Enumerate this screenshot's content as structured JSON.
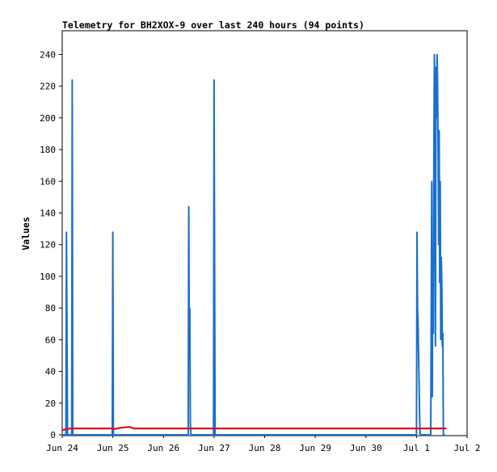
{
  "chart_data": {
    "type": "line",
    "title": "Telemetry for BH2XOX-9 over last 240 hours (94 points)",
    "xlabel": "",
    "ylabel": "Values",
    "xlim": [
      "Jun 24 00:00",
      "Jul 2 00:00"
    ],
    "ylim": [
      0,
      255
    ],
    "grid": false,
    "legend": "none",
    "x_ticks": [
      "Jun 24",
      "Jun 25",
      "Jun 26",
      "Jun 27",
      "Jun 28",
      "Jun 29",
      "Jun 30",
      "Jul 1",
      "Jul 2"
    ],
    "y_ticks": [
      "0",
      "20",
      "40",
      "60",
      "80",
      "100",
      "120",
      "140",
      "160",
      "180",
      "200",
      "220",
      "240"
    ],
    "colors": {
      "series_a": "#1a6fce",
      "series_b": "#e01010",
      "axis": "#000000",
      "background": "#ffffff"
    },
    "series": [
      {
        "color": "#1a6fce",
        "points": [
          [
            "Jun 24 00:00",
            0
          ],
          [
            "Jun 24 01:45",
            0
          ],
          [
            "Jun 24 02:00",
            128
          ],
          [
            "Jun 24 02:15",
            64
          ],
          [
            "Jun 24 02:30",
            0
          ],
          [
            "Jun 24 04:30",
            0
          ],
          [
            "Jun 24 04:45",
            224
          ],
          [
            "Jun 24 05:00",
            0
          ],
          [
            "Jun 24 23:45",
            0
          ],
          [
            "Jun 25 00:00",
            128
          ],
          [
            "Jun 25 00:15",
            0
          ],
          [
            "Jun 26 11:45",
            0
          ],
          [
            "Jun 26 12:00",
            144
          ],
          [
            "Jun 26 12:15",
            64
          ],
          [
            "Jun 26 12:30",
            80
          ],
          [
            "Jun 26 12:45",
            8
          ],
          [
            "Jun 26 13:00",
            0
          ],
          [
            "Jun 26 23:45",
            0
          ],
          [
            "Jun 27 00:00",
            224
          ],
          [
            "Jun 27 00:15",
            112
          ],
          [
            "Jun 27 00:30",
            0
          ],
          [
            "Jul 1 00:00",
            0
          ],
          [
            "Jul 1 00:15",
            128
          ],
          [
            "Jul 1 00:30",
            80
          ],
          [
            "Jul 1 00:45",
            70
          ],
          [
            "Jul 1 01:00",
            50
          ],
          [
            "Jul 1 01:15",
            30
          ],
          [
            "Jul 1 01:30",
            10
          ],
          [
            "Jul 1 01:45",
            0
          ],
          [
            "Jul 1 06:45",
            0
          ],
          [
            "Jul 1 07:00",
            80
          ],
          [
            "Jul 1 07:15",
            160
          ],
          [
            "Jul 1 07:30",
            24
          ],
          [
            "Jul 1 07:45",
            112
          ],
          [
            "Jul 1 08:00",
            64
          ],
          [
            "Jul 1 08:15",
            180
          ],
          [
            "Jul 1 08:30",
            240
          ],
          [
            "Jul 1 08:45",
            168
          ],
          [
            "Jul 1 09:00",
            56
          ],
          [
            "Jul 1 09:15",
            232
          ],
          [
            "Jul 1 09:30",
            200
          ],
          [
            "Jul 1 09:45",
            240
          ],
          [
            "Jul 1 10:00",
            220
          ],
          [
            "Jul 1 10:15",
            180
          ],
          [
            "Jul 1 10:30",
            120
          ],
          [
            "Jul 1 10:45",
            192
          ],
          [
            "Jul 1 11:00",
            96
          ],
          [
            "Jul 1 11:15",
            160
          ],
          [
            "Jul 1 11:30",
            60
          ],
          [
            "Jul 1 11:45",
            112
          ],
          [
            "Jul 1 12:00",
            96
          ],
          [
            "Jul 1 12:15",
            56
          ],
          [
            "Jul 1 12:30",
            64
          ],
          [
            "Jul 1 12:45",
            0
          ],
          [
            "Jul 1 13:15",
            0
          ]
        ]
      },
      {
        "color": "#e01010",
        "points": [
          [
            "Jun 24 00:00",
            3
          ],
          [
            "Jun 24 04:00",
            4
          ],
          [
            "Jun 24 23:45",
            4
          ],
          [
            "Jun 25 00:00",
            3.5
          ],
          [
            "Jun 25 04:00",
            4.5
          ],
          [
            "Jun 25 08:00",
            5
          ],
          [
            "Jun 25 10:00",
            4
          ],
          [
            "Jul 1 14:00",
            4
          ]
        ]
      }
    ]
  }
}
